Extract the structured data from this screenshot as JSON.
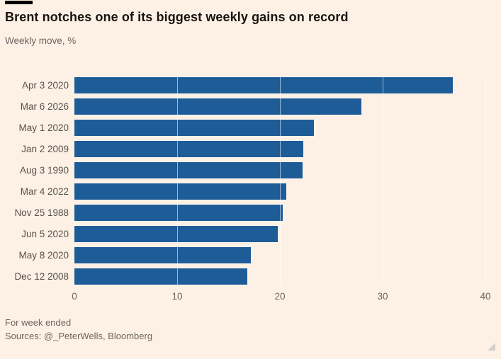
{
  "header": {
    "title": "Brent notches one of its biggest weekly gains on record",
    "subtitle": "Weekly move, %"
  },
  "chart_data": {
    "type": "bar",
    "orientation": "horizontal",
    "title": "Brent notches one of its biggest weekly gains on record",
    "subtitle": "Weekly move, %",
    "categories": [
      "Apr 3 2020",
      "Mar 6 2026",
      "May 1 2020",
      "Jan 2 2009",
      "Aug 3 1990",
      "Mar 4 2022",
      "Nov 25 1988",
      "Jun 5 2020",
      "May 8 2020",
      "Dec 12 2008"
    ],
    "values": [
      36.8,
      27.9,
      23.3,
      22.3,
      22.2,
      20.6,
      20.3,
      19.8,
      17.2,
      16.8
    ],
    "xlabel": "",
    "ylabel": "",
    "xlim": [
      0,
      40
    ],
    "xticks": [
      0,
      10,
      20,
      30,
      40
    ],
    "grid": "vertical-light",
    "legend": "none",
    "bar_color": "#1e5c97",
    "background_color": "#fdf1e5"
  },
  "footer": {
    "note": "For week ended",
    "sources": "Sources: @_PeterWells, Bloomberg"
  }
}
